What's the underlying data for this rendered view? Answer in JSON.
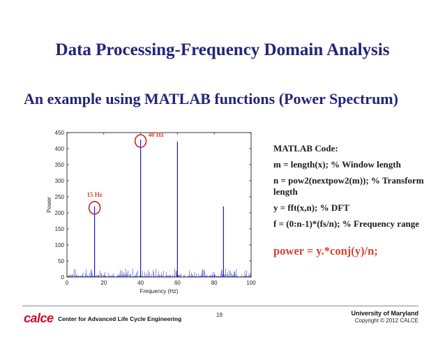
{
  "slide": {
    "title": "Data Processing-Frequency Domain Analysis",
    "subtitle": "An example using MATLAB functions (Power Spectrum)"
  },
  "code": {
    "heading": "MATLAB Code:",
    "line1": "m = length(x); % Window length",
    "line2": "n = pow2(nextpow2(m)); % Transform length",
    "line3": "y = fft(x,n); % DFT",
    "line4": "f = (0:n-1)*(fs/n); % Frequency range",
    "line5": "power = y.*conj(y)/n;"
  },
  "footer": {
    "logo": "calce",
    "center_name": "Center for Advanced Life Cycle Engineering",
    "page_number": "19",
    "university": "University of Maryland",
    "copyright": "Copyright © 2012 CALCE"
  },
  "chart_data": {
    "type": "line",
    "xlabel": "Frequency (Hz)",
    "ylabel": "Power",
    "xlim": [
      0,
      100
    ],
    "ylim": [
      0,
      450
    ],
    "xticks": [
      0,
      20,
      40,
      60,
      80,
      100
    ],
    "yticks": [
      0,
      50,
      100,
      150,
      200,
      250,
      300,
      350,
      400,
      450
    ],
    "peaks": [
      {
        "x": 15,
        "y": 220
      },
      {
        "x": 40,
        "y": 428
      },
      {
        "x": 60,
        "y": 422
      },
      {
        "x": 85,
        "y": 220
      }
    ],
    "annotations": [
      {
        "text": "15 Hz",
        "x": 15,
        "y": 220,
        "color": "#d9412b"
      },
      {
        "text": "40 Hz",
        "x": 40,
        "y": 428,
        "color": "#d9412b"
      }
    ],
    "series_color": "#1a1ad0",
    "grid": false
  }
}
